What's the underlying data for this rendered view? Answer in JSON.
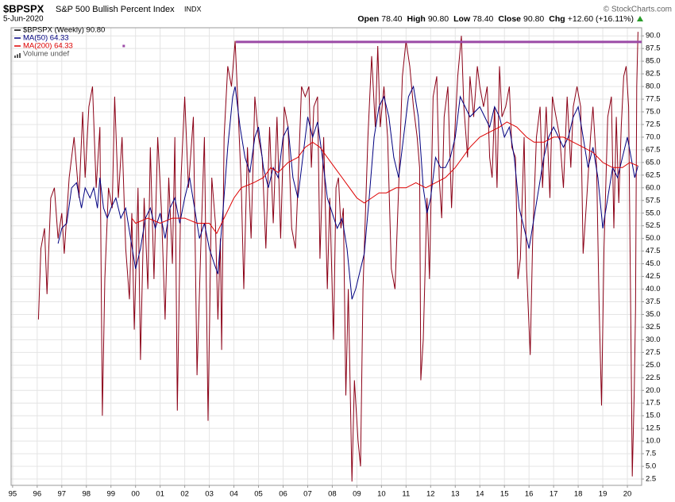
{
  "chart_data": {
    "type": "line",
    "symbol": "$BPSPX",
    "title": "S&P 500 Bullish Percent Index",
    "exchange": "INDX",
    "date": "5-Jun-2020",
    "credit": "© StockCharts.com",
    "quote": [
      {
        "label": "Open",
        "value": "78.40"
      },
      {
        "label": "High",
        "value": "90.80"
      },
      {
        "label": "Low",
        "value": "78.40"
      },
      {
        "label": "Close",
        "value": "90.80"
      },
      {
        "label": "Chg",
        "value": "+12.60 (+16.11%)"
      }
    ],
    "volume_label": "Volume undef",
    "grid": true,
    "xlim": [
      1994.94,
      2020.58
    ],
    "ylim": [
      1.25,
      91.6
    ],
    "xticks": [
      {
        "value": 1995,
        "label": "95"
      },
      {
        "value": 1996,
        "label": "96"
      },
      {
        "value": 1997,
        "label": "97"
      },
      {
        "value": 1998,
        "label": "98"
      },
      {
        "value": 1999,
        "label": "99"
      },
      {
        "value": 2000,
        "label": "00"
      },
      {
        "value": 2001,
        "label": "01"
      },
      {
        "value": 2002,
        "label": "02"
      },
      {
        "value": 2003,
        "label": "03"
      },
      {
        "value": 2004,
        "label": "04"
      },
      {
        "value": 2005,
        "label": "05"
      },
      {
        "value": 2006,
        "label": "06"
      },
      {
        "value": 2007,
        "label": "07"
      },
      {
        "value": 2008,
        "label": "08"
      },
      {
        "value": 2009,
        "label": "09"
      },
      {
        "value": 2010,
        "label": "10"
      },
      {
        "value": 2011,
        "label": "11"
      },
      {
        "value": 2012,
        "label": "12"
      },
      {
        "value": 2013,
        "label": "13"
      },
      {
        "value": 2014,
        "label": "14"
      },
      {
        "value": 2015,
        "label": "15"
      },
      {
        "value": 2016,
        "label": "16"
      },
      {
        "value": 2017,
        "label": "17"
      },
      {
        "value": 2018,
        "label": "18"
      },
      {
        "value": 2019,
        "label": "19"
      },
      {
        "value": 2020,
        "label": "20"
      }
    ],
    "yticks": [
      2.5,
      {
        "value": 5,
        "label": "5.0"
      },
      7.5,
      {
        "value": 10,
        "label": "10.0"
      },
      12.5,
      {
        "value": 15,
        "label": "15.0"
      },
      17.5,
      {
        "value": 20,
        "label": "20.0"
      },
      22.5,
      {
        "value": 25,
        "label": "25.0"
      },
      27.5,
      {
        "value": 30,
        "label": "30.0"
      },
      32.5,
      {
        "value": 35,
        "label": "35.0"
      },
      37.5,
      {
        "value": 40,
        "label": "40.0"
      },
      42.5,
      {
        "value": 45,
        "label": "45.0"
      },
      47.5,
      {
        "value": 50,
        "label": "50.0"
      },
      52.5,
      {
        "value": 55,
        "label": "55.0"
      },
      57.5,
      {
        "value": 60,
        "label": "60.0"
      },
      62.5,
      {
        "value": 65,
        "label": "65.0"
      },
      67.5,
      {
        "value": 70,
        "label": "70.0"
      },
      72.5,
      {
        "value": 75,
        "label": "75.0"
      },
      77.5,
      {
        "value": 80,
        "label": "80.0"
      },
      82.5,
      {
        "value": 85,
        "label": "85.0"
      },
      87.5,
      {
        "value": 90,
        "label": "90.0"
      }
    ],
    "hline": {
      "value": 88.8,
      "x_start": 2004.08,
      "color": "#9b4aa6"
    },
    "marker": {
      "x": 1999.52,
      "y": 88,
      "color": "#9b4aa6"
    },
    "series": [
      {
        "name": "$BPSPX (Weekly) 90.80",
        "color": "#8b0016",
        "legend_color": "#000000",
        "x": [
          1996.05,
          1996.15,
          1996.3,
          1996.4,
          1996.55,
          1996.7,
          1996.85,
          1997.0,
          1997.1,
          1997.3,
          1997.5,
          1997.7,
          1997.85,
          1997.95,
          1998.1,
          1998.25,
          1998.4,
          1998.55,
          1998.65,
          1998.75,
          1998.9,
          1999.05,
          1999.15,
          1999.3,
          1999.45,
          1999.6,
          1999.75,
          1999.85,
          1999.95,
          2000.1,
          2000.2,
          2000.35,
          2000.5,
          2000.6,
          2000.75,
          2000.9,
          2001.05,
          2001.2,
          2001.35,
          2001.5,
          2001.6,
          2001.7,
          2001.85,
          2002.0,
          2002.15,
          2002.35,
          2002.5,
          2002.65,
          2002.8,
          2002.95,
          2003.1,
          2003.25,
          2003.35,
          2003.45,
          2003.5,
          2003.6,
          2003.75,
          2003.9,
          2004.05,
          2004.15,
          2004.3,
          2004.4,
          2004.55,
          2004.7,
          2004.85,
          2005.0,
          2005.15,
          2005.3,
          2005.45,
          2005.6,
          2005.75,
          2005.9,
          2006.05,
          2006.2,
          2006.35,
          2006.5,
          2006.6,
          2006.75,
          2006.9,
          2007.05,
          2007.15,
          2007.25,
          2007.4,
          2007.5,
          2007.65,
          2007.8,
          2007.9,
          2008.05,
          2008.15,
          2008.25,
          2008.35,
          2008.45,
          2008.55,
          2008.65,
          2008.8,
          2008.9,
          2009.05,
          2009.15,
          2009.25,
          2009.45,
          2009.6,
          2009.75,
          2009.85,
          2009.95,
          2010.1,
          2010.25,
          2010.4,
          2010.55,
          2010.7,
          2010.85,
          2011.0,
          2011.15,
          2011.3,
          2011.45,
          2011.55,
          2011.6,
          2011.7,
          2011.85,
          2011.95,
          2012.1,
          2012.25,
          2012.35,
          2012.45,
          2012.55,
          2012.7,
          2012.85,
          2012.95,
          2013.1,
          2013.25,
          2013.35,
          2013.5,
          2013.6,
          2013.75,
          2013.9,
          2014.0,
          2014.15,
          2014.3,
          2014.4,
          2014.5,
          2014.6,
          2014.7,
          2014.8,
          2014.9,
          2015.05,
          2015.2,
          2015.3,
          2015.45,
          2015.55,
          2015.65,
          2015.8,
          2015.9,
          2016.05,
          2016.15,
          2016.3,
          2016.45,
          2016.55,
          2016.7,
          2016.85,
          2016.95,
          2017.1,
          2017.25,
          2017.4,
          2017.55,
          2017.7,
          2017.8,
          2017.95,
          2018.1,
          2018.2,
          2018.35,
          2018.5,
          2018.6,
          2018.75,
          2018.85,
          2018.95,
          2019.05,
          2019.2,
          2019.35,
          2019.45,
          2019.55,
          2019.65,
          2019.75,
          2019.85,
          2019.95,
          2020.05,
          2020.15,
          2020.2,
          2020.28,
          2020.33,
          2020.38,
          2020.43
        ],
        "values": [
          34,
          48,
          52,
          39,
          58,
          60,
          50,
          55,
          47,
          62,
          70,
          58,
          75,
          62,
          76,
          80,
          60,
          72,
          15,
          42,
          60,
          56,
          78,
          58,
          70,
          48,
          38,
          55,
          32,
          60,
          26,
          58,
          40,
          68,
          42,
          70,
          56,
          34,
          62,
          45,
          70,
          16,
          62,
          78,
          60,
          74,
          23,
          48,
          70,
          14,
          62,
          53,
          34,
          50,
          28,
          70,
          84,
          80,
          89,
          78,
          60,
          40,
          68,
          50,
          78,
          70,
          66,
          48,
          72,
          53,
          74,
          50,
          76,
          72,
          52,
          48,
          60,
          80,
          78,
          80,
          64,
          76,
          78,
          46,
          70,
          40,
          58,
          30,
          60,
          62,
          52,
          56,
          19,
          40,
          2,
          22,
          10,
          5,
          40,
          70,
          86,
          72,
          88,
          72,
          80,
          70,
          44,
          40,
          60,
          82,
          89,
          84,
          76,
          70,
          64,
          22,
          30,
          58,
          42,
          78,
          82,
          62,
          54,
          74,
          80,
          56,
          68,
          82,
          90,
          76,
          66,
          82,
          74,
          84,
          80,
          76,
          80,
          66,
          62,
          76,
          60,
          84,
          74,
          76,
          80,
          68,
          66,
          42,
          46,
          70,
          44,
          27,
          50,
          70,
          76,
          60,
          76,
          58,
          78,
          74,
          70,
          60,
          78,
          64,
          76,
          80,
          76,
          47,
          58,
          70,
          76,
          64,
          37,
          17,
          48,
          74,
          78,
          52,
          74,
          57,
          72,
          82,
          84,
          76,
          28,
          3,
          20,
          36,
          80,
          90.8
        ]
      },
      {
        "name": "MA(50) 64.33",
        "color": "#000080",
        "x": [
          1996.85,
          1997.0,
          1997.2,
          1997.4,
          1997.6,
          1997.8,
          1997.95,
          1998.15,
          1998.3,
          1998.45,
          1998.55,
          1998.7,
          1998.85,
          1999.0,
          1999.2,
          1999.4,
          1999.6,
          1999.8,
          2000.0,
          2000.2,
          2000.4,
          2000.6,
          2000.8,
          2001.0,
          2001.2,
          2001.4,
          2001.6,
          2001.8,
          2002.0,
          2002.2,
          2002.4,
          2002.6,
          2002.8,
          2003.0,
          2003.2,
          2003.35,
          2003.55,
          2003.75,
          2003.95,
          2004.05,
          2004.25,
          2004.45,
          2004.65,
          2004.85,
          2005.0,
          2005.2,
          2005.4,
          2005.6,
          2005.8,
          2006.0,
          2006.2,
          2006.4,
          2006.6,
          2006.8,
          2007.0,
          2007.2,
          2007.4,
          2007.6,
          2007.8,
          2008.0,
          2008.2,
          2008.4,
          2008.6,
          2008.8,
          2008.95,
          2009.1,
          2009.3,
          2009.5,
          2009.7,
          2009.9,
          2010.1,
          2010.3,
          2010.5,
          2010.7,
          2010.9,
          2011.1,
          2011.3,
          2011.5,
          2011.7,
          2011.85,
          2012.0,
          2012.2,
          2012.4,
          2012.6,
          2012.8,
          2013.0,
          2013.2,
          2013.4,
          2013.6,
          2013.8,
          2014.0,
          2014.2,
          2014.4,
          2014.6,
          2014.8,
          2015.0,
          2015.2,
          2015.4,
          2015.6,
          2015.8,
          2016.0,
          2016.2,
          2016.4,
          2016.6,
          2016.8,
          2017.0,
          2017.2,
          2017.4,
          2017.6,
          2017.8,
          2018.0,
          2018.2,
          2018.4,
          2018.6,
          2018.8,
          2019.0,
          2019.2,
          2019.4,
          2019.6,
          2019.8,
          2020.0,
          2020.15,
          2020.3,
          2020.43
        ],
        "values": [
          49,
          52,
          53,
          60,
          61,
          56,
          60,
          58,
          60,
          56,
          62,
          56,
          54,
          56,
          58,
          54,
          56,
          50,
          44,
          48,
          54,
          56,
          52,
          55,
          50,
          56,
          58,
          53,
          58,
          62,
          56,
          50,
          53,
          48,
          45,
          43,
          55,
          68,
          78,
          80,
          72,
          66,
          63,
          70,
          72,
          64,
          60,
          64,
          62,
          70,
          72,
          62,
          58,
          66,
          74,
          70,
          73,
          66,
          58,
          55,
          52,
          54,
          48,
          38,
          40,
          43,
          47,
          58,
          70,
          76,
          78,
          74,
          66,
          62,
          70,
          78,
          80,
          74,
          60,
          55,
          58,
          66,
          64,
          64,
          66,
          70,
          78,
          76,
          74,
          75,
          76,
          74,
          72,
          76,
          74,
          70,
          72,
          66,
          56,
          52,
          48,
          54,
          60,
          66,
          70,
          72,
          70,
          68,
          70,
          74,
          76,
          70,
          64,
          68,
          62,
          52,
          58,
          64,
          62,
          66,
          70,
          66,
          62,
          64.33
        ]
      },
      {
        "name": "MA(200) 64.33",
        "color": "#dd0000",
        "x": [
          1999.85,
          2000.0,
          2000.5,
          2001.0,
          2001.5,
          2002.0,
          2002.5,
          2003.0,
          2003.3,
          2003.7,
          2004.0,
          2004.3,
          2004.8,
          2005.2,
          2005.5,
          2005.8,
          2006.2,
          2006.6,
          2006.9,
          2007.2,
          2007.5,
          2007.8,
          2008.1,
          2008.4,
          2008.7,
          2009.0,
          2009.3,
          2009.6,
          2009.9,
          2010.2,
          2010.6,
          2011.0,
          2011.4,
          2011.8,
          2012.2,
          2012.6,
          2013.0,
          2013.3,
          2013.6,
          2014.0,
          2014.4,
          2014.8,
          2015.1,
          2015.5,
          2015.9,
          2016.2,
          2016.6,
          2017.0,
          2017.4,
          2017.8,
          2018.2,
          2018.6,
          2019.0,
          2019.4,
          2019.8,
          2020.1,
          2020.43
        ],
        "values": [
          54,
          53,
          54,
          53,
          54,
          54,
          53,
          53,
          51,
          55,
          58,
          60,
          61,
          62,
          64,
          63,
          65,
          66,
          68,
          69,
          68,
          66,
          64,
          62,
          60,
          58,
          57,
          58,
          59,
          59,
          60,
          60,
          61,
          60,
          61,
          62,
          64,
          66,
          68,
          70,
          71,
          72,
          73,
          72,
          70,
          69,
          69,
          70,
          70,
          69,
          68,
          67,
          65,
          64,
          64,
          65,
          64.33
        ]
      }
    ]
  }
}
